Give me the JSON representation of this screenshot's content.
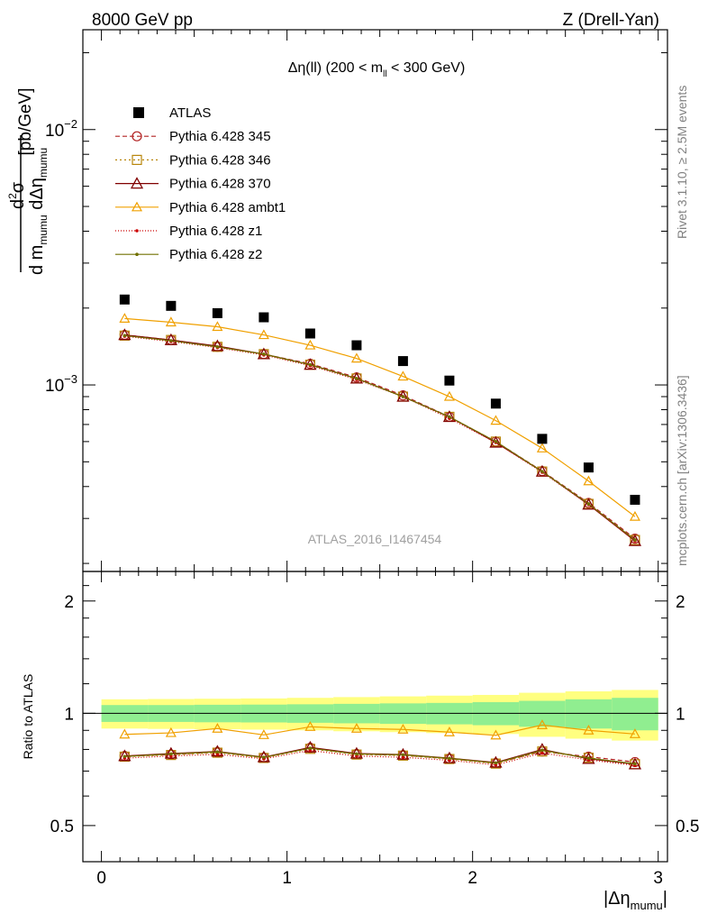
{
  "header": {
    "left": "8000 GeV pp",
    "right": "Z (Drell-Yan)"
  },
  "side_labels": {
    "rivet": "Rivet 3.1.10, ≥ 2.5M events",
    "mcplots": "mcplots.cern.ch [arXiv:1306.3436]"
  },
  "plot_title": {
    "main": "Δη(ll) (200 < m",
    "sub": "ll",
    "tail": " < 300 GeV)"
  },
  "watermark": "ATLAS_2016_I1467454",
  "ylabel_top": {
    "units": "[pb/GeV]",
    "num_d": "d",
    "num_sup": "2",
    "num_sigma": "σ",
    "den_d": "d m",
    "den_sub1": "mumu",
    "den_mid": " dΔη",
    "den_sub2": "mumu"
  },
  "ylabel_ratio": "Ratio to ATLAS",
  "xlabel": {
    "main": "|Δη",
    "sub": "mumu",
    "tail": "|"
  },
  "tick_labels": {
    "y_top": [
      {
        "base": "10",
        "exp": "−2",
        "value": 0.01
      },
      {
        "base": "10",
        "exp": "−3",
        "value": 0.001
      }
    ],
    "y_ratio": [
      {
        "label": "2",
        "value": 2
      },
      {
        "label": "1",
        "value": 1
      },
      {
        "label": "0.5",
        "value": 0.5
      }
    ],
    "x": [
      {
        "label": "0",
        "value": 0
      },
      {
        "label": "1",
        "value": 1
      },
      {
        "label": "2",
        "value": 2
      },
      {
        "label": "3",
        "value": 3
      }
    ]
  },
  "chart_data": {
    "type": "line",
    "x": [
      0.125,
      0.375,
      0.625,
      0.875,
      1.125,
      1.375,
      1.625,
      1.875,
      2.125,
      2.375,
      2.625,
      2.875
    ],
    "xlim": [
      -0.1,
      3.05
    ],
    "ylim": [
      0.000186,
      0.0246
    ],
    "yscale": "log",
    "ratio_ylim": [
      0.4,
      2.4
    ],
    "ratio_yscale": "log",
    "legend_position": "top-left",
    "data": {
      "name": "ATLAS",
      "color": "#000000",
      "values": [
        0.00216,
        0.00204,
        0.00191,
        0.00184,
        0.00159,
        0.00143,
        0.00124,
        0.00104,
        0.000845,
        0.000615,
        0.000475,
        0.000355
      ],
      "ratio_band_inner": [
        0.052,
        0.052,
        0.054,
        0.055,
        0.057,
        0.06,
        0.063,
        0.066,
        0.071,
        0.08,
        0.09,
        0.1
      ],
      "ratio_band_outer": [
        0.09,
        0.092,
        0.094,
        0.096,
        0.1,
        0.105,
        0.11,
        0.115,
        0.12,
        0.135,
        0.145,
        0.155
      ],
      "band_colors": {
        "inner": "#90ee90",
        "outer": "#ffff80"
      }
    },
    "series": [
      {
        "name": "Pythia 6.428 345",
        "color": "#b22222",
        "dash": "5,3",
        "marker": "circle",
        "values": [
          0.00157,
          0.0015,
          0.00141,
          0.00132,
          0.00121,
          0.00107,
          0.00091,
          0.00075,
          0.0006,
          0.00046,
          0.000345,
          0.00025
        ],
        "ratio": [
          0.768,
          0.775,
          0.787,
          0.761,
          0.808,
          0.778,
          0.772,
          0.756,
          0.735,
          0.79,
          0.765,
          0.74
        ]
      },
      {
        "name": "Pythia 6.428 346",
        "color": "#b8860b",
        "dash": "2,3",
        "marker": "square",
        "values": [
          0.00156,
          0.0015,
          0.00141,
          0.00132,
          0.0012,
          0.00106,
          0.0009,
          0.00075,
          0.0006,
          0.000458,
          0.000342,
          0.000247
        ],
        "ratio": [
          0.765,
          0.773,
          0.784,
          0.759,
          0.803,
          0.775,
          0.77,
          0.754,
          0.733,
          0.79,
          0.76,
          0.73
        ]
      },
      {
        "name": "Pythia 6.428 370",
        "color": "#800000",
        "dash": "",
        "marker": "triangle",
        "values": [
          0.00157,
          0.0015,
          0.00142,
          0.00132,
          0.0012,
          0.00106,
          0.0009,
          0.00075,
          0.000595,
          0.000458,
          0.00034,
          0.000245
        ],
        "ratio": [
          0.768,
          0.78,
          0.79,
          0.763,
          0.81,
          0.78,
          0.775,
          0.758,
          0.738,
          0.8,
          0.755,
          0.73
        ]
      },
      {
        "name": "Pythia 6.428 ambt1",
        "color": "#f0a000",
        "dash": "",
        "marker": "triangle-open",
        "values": [
          0.00182,
          0.00176,
          0.00169,
          0.00157,
          0.00143,
          0.00127,
          0.00108,
          0.0009,
          0.000725,
          0.000565,
          0.00042,
          0.000305
        ],
        "ratio": [
          0.878,
          0.886,
          0.91,
          0.875,
          0.92,
          0.91,
          0.905,
          0.89,
          0.873,
          0.93,
          0.9,
          0.88
        ]
      },
      {
        "name": "Pythia 6.428 z1",
        "color": "#cc0000",
        "dash": "1,2",
        "marker": "dot",
        "values": [
          0.00155,
          0.00148,
          0.0014,
          0.00131,
          0.00119,
          0.00105,
          0.0009,
          0.00074,
          0.000595,
          0.000455,
          0.00034,
          0.000245
        ],
        "ratio": [
          0.758,
          0.768,
          0.776,
          0.755,
          0.795,
          0.768,
          0.762,
          0.748,
          0.727,
          0.782,
          0.75,
          0.725
        ]
      },
      {
        "name": "Pythia 6.428 z2",
        "color": "#707000",
        "dash": "",
        "marker": "dot",
        "values": [
          0.00156,
          0.00149,
          0.00141,
          0.00132,
          0.0012,
          0.00106,
          0.0009,
          0.00075,
          0.0006,
          0.000458,
          0.000342,
          0.000247
        ],
        "ratio": [
          0.766,
          0.778,
          0.788,
          0.762,
          0.806,
          0.778,
          0.774,
          0.757,
          0.736,
          0.796,
          0.758,
          0.732
        ]
      }
    ]
  }
}
